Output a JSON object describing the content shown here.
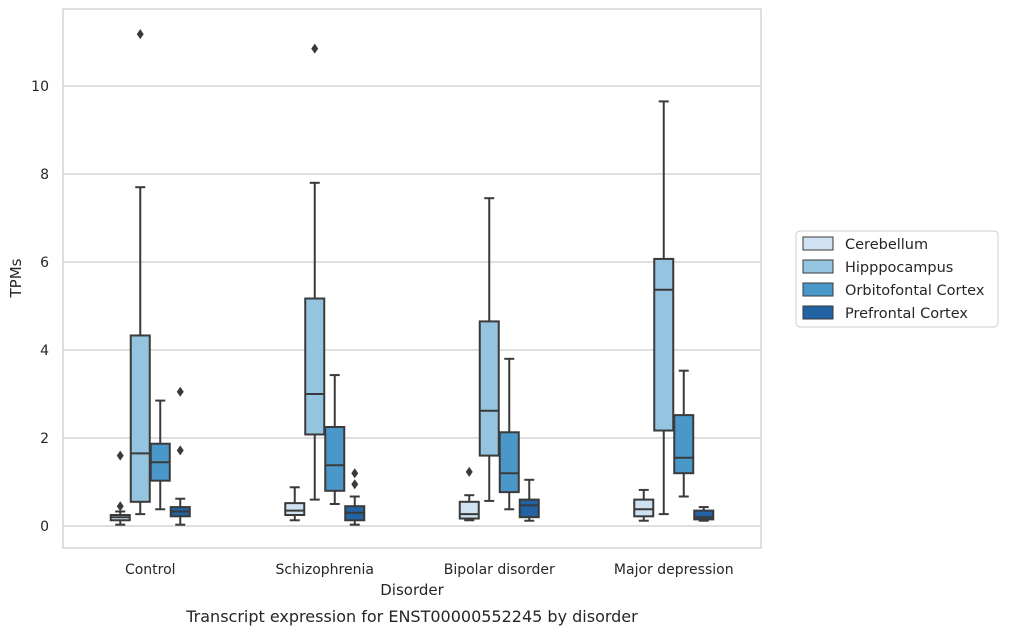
{
  "chart_data": {
    "type": "box",
    "title": "",
    "caption": "Transcript expression for ENST00000552245 by disorder",
    "xlabel": "Disorder",
    "ylabel": "TPMs",
    "ylim": [
      -0.5,
      11.75
    ],
    "yticks": [
      0,
      2,
      4,
      6,
      8,
      10
    ],
    "grid": "horizontal",
    "legend_position": "right",
    "categories": [
      "Control",
      "Schizophrenia",
      "Bipolar disorder",
      "Major depression"
    ],
    "series": [
      {
        "name": "Cerebellum",
        "color": "#d0e1f2",
        "boxes": [
          {
            "whislo": 0.03,
            "q1": 0.13,
            "med": 0.2,
            "q3": 0.25,
            "whishi": 0.33,
            "fliers": [
              0.45,
              1.6
            ]
          },
          {
            "whislo": 0.13,
            "q1": 0.25,
            "med": 0.35,
            "q3": 0.52,
            "whishi": 0.88,
            "fliers": []
          },
          {
            "whislo": 0.13,
            "q1": 0.17,
            "med": 0.27,
            "q3": 0.55,
            "whishi": 0.7,
            "fliers": [
              1.23
            ]
          },
          {
            "whislo": 0.12,
            "q1": 0.22,
            "med": 0.38,
            "q3": 0.6,
            "whishi": 0.82,
            "fliers": []
          }
        ]
      },
      {
        "name": "Hipppocampus",
        "color": "#94c4df",
        "boxes": [
          {
            "whislo": 0.27,
            "q1": 0.55,
            "med": 1.65,
            "q3": 4.33,
            "whishi": 7.7,
            "fliers": [
              11.18
            ]
          },
          {
            "whislo": 0.6,
            "q1": 2.08,
            "med": 3.0,
            "q3": 5.17,
            "whishi": 7.8,
            "fliers": [
              10.85
            ]
          },
          {
            "whislo": 0.57,
            "q1": 1.6,
            "med": 2.62,
            "q3": 4.65,
            "whishi": 7.45,
            "fliers": []
          },
          {
            "whislo": 0.27,
            "q1": 2.17,
            "med": 5.37,
            "q3": 6.07,
            "whishi": 9.65,
            "fliers": []
          }
        ]
      },
      {
        "name": "Orbitofontal Cortex",
        "color": "#4a98c9",
        "boxes": [
          {
            "whislo": 0.38,
            "q1": 1.03,
            "med": 1.45,
            "q3": 1.87,
            "whishi": 2.85,
            "fliers": []
          },
          {
            "whislo": 0.5,
            "q1": 0.8,
            "med": 1.38,
            "q3": 2.25,
            "whishi": 3.43,
            "fliers": []
          },
          {
            "whislo": 0.38,
            "q1": 0.77,
            "med": 1.2,
            "q3": 2.13,
            "whishi": 3.8,
            "fliers": []
          },
          {
            "whislo": 0.67,
            "q1": 1.2,
            "med": 1.55,
            "q3": 2.52,
            "whishi": 3.53,
            "fliers": []
          }
        ]
      },
      {
        "name": "Prefrontal Cortex",
        "color": "#2363a4",
        "boxes": [
          {
            "whislo": 0.03,
            "q1": 0.22,
            "med": 0.33,
            "q3": 0.43,
            "whishi": 0.62,
            "fliers": [
              1.72,
              3.05
            ]
          },
          {
            "whislo": 0.03,
            "q1": 0.13,
            "med": 0.3,
            "q3": 0.45,
            "whishi": 0.67,
            "fliers": [
              0.95,
              1.2
            ]
          },
          {
            "whislo": 0.12,
            "q1": 0.2,
            "med": 0.47,
            "q3": 0.6,
            "whishi": 1.05,
            "fliers": []
          },
          {
            "whislo": 0.12,
            "q1": 0.15,
            "med": 0.2,
            "q3": 0.35,
            "whishi": 0.43,
            "fliers": []
          }
        ]
      }
    ]
  }
}
